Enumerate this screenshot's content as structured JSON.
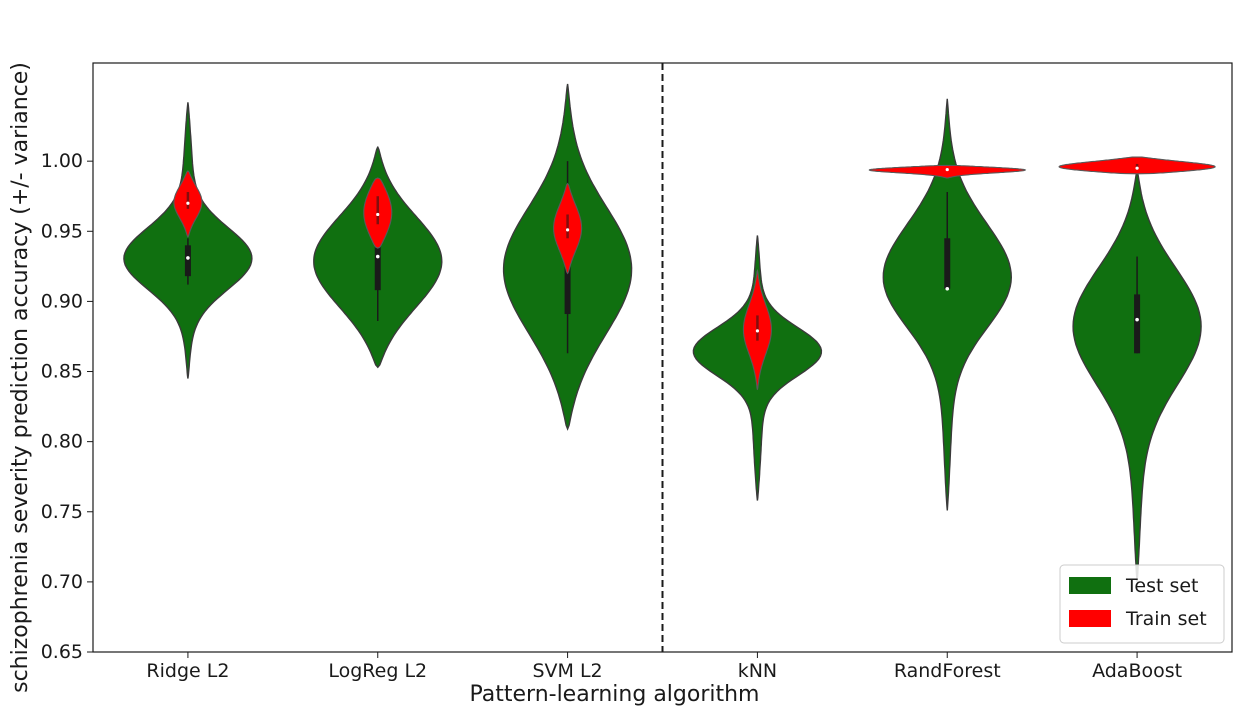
{
  "chart_data": {
    "type": "violin",
    "title": "",
    "xlabel": "Pattern-learning algorithm",
    "ylabel": "schizophrenia severity prediction accuracy (+/- variance)",
    "ylim": [
      0.65,
      1.07
    ],
    "yticks": [
      "0.65",
      "0.70",
      "0.75",
      "0.80",
      "0.85",
      "0.90",
      "0.95",
      "1.00"
    ],
    "grid": false,
    "legend_position": "lower-right",
    "divider_between": [
      "SVM L2",
      "kNN"
    ],
    "categories": [
      "Ridge L2",
      "LogReg L2",
      "SVM L2",
      "kNN",
      "RandForest",
      "AdaBoost"
    ],
    "series": [
      {
        "name": "Test set",
        "color": "#107010",
        "min": [
          0.845,
          0.853,
          0.809,
          0.758,
          0.751,
          0.7
        ],
        "max": [
          1.042,
          1.01,
          1.055,
          0.947,
          1.044,
          0.993
        ],
        "median": [
          0.931,
          0.932,
          0.931,
          0.864,
          0.909,
          0.887
        ],
        "q1": [
          0.918,
          0.908,
          0.891,
          0.862,
          0.909,
          0.863
        ],
        "q3": [
          0.94,
          0.941,
          0.936,
          0.868,
          0.945,
          0.905
        ],
        "whisker_low": [
          0.912,
          0.886,
          0.863,
          0.86,
          0.909,
          0.863
        ],
        "whisker_high": [
          0.945,
          0.985,
          1.0,
          0.87,
          0.978,
          0.932
        ]
      },
      {
        "name": "Train set",
        "color": "#ff0000",
        "min": [
          0.946,
          0.938,
          0.92,
          0.837,
          0.988,
          0.991
        ],
        "max": [
          0.993,
          0.988,
          0.984,
          0.922,
          0.997,
          1.003
        ],
        "median": [
          0.97,
          0.962,
          0.951,
          0.879,
          0.994,
          0.995
        ],
        "q1": [
          0.966,
          0.955,
          0.945,
          0.872,
          0.993,
          0.994
        ],
        "q3": [
          0.978,
          0.975,
          0.962,
          0.89,
          0.995,
          0.998
        ]
      }
    ]
  }
}
